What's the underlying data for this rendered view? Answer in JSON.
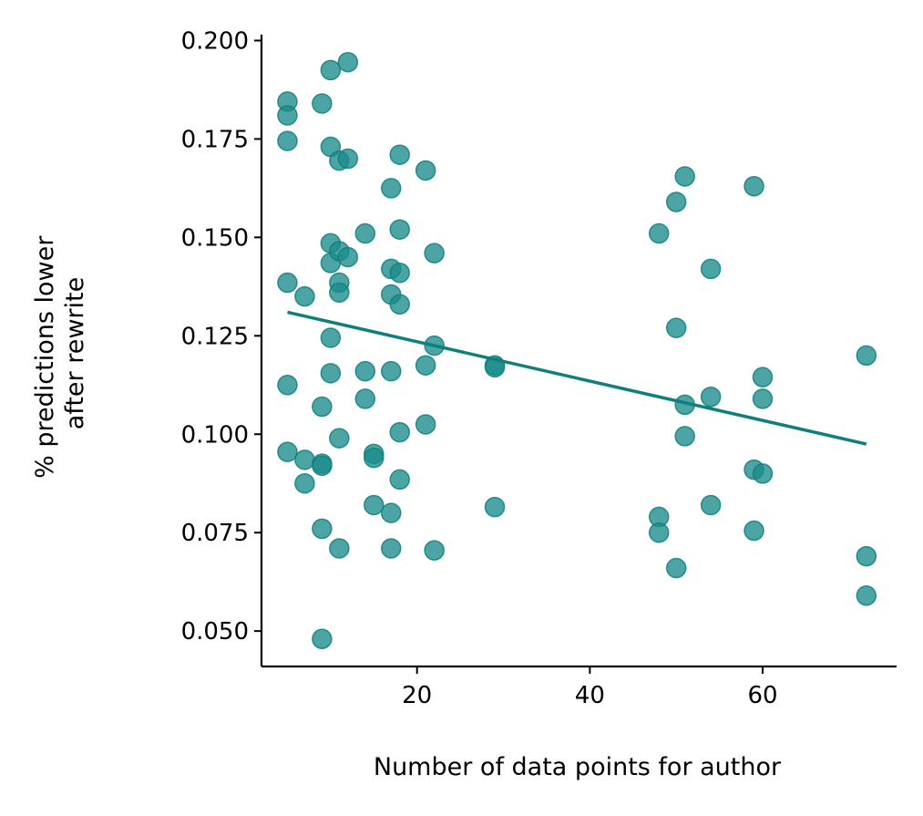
{
  "chart_data": {
    "type": "scatter",
    "title": "",
    "xlabel": "Number of data points for author",
    "ylabel_lines": [
      "% predictions lower",
      "after rewrite"
    ],
    "xlim": [
      2,
      75.5
    ],
    "ylim": [
      0.041,
      0.2015
    ],
    "x_ticks": [
      20,
      40,
      60
    ],
    "x_tick_labels": [
      "20",
      "40",
      "60"
    ],
    "y_ticks": [
      0.05,
      0.075,
      0.1,
      0.125,
      0.15,
      0.175,
      0.2
    ],
    "y_tick_labels": [
      "0.050",
      "0.075",
      "0.100",
      "0.125",
      "0.150",
      "0.175",
      "0.200"
    ],
    "grid": false,
    "colors": {
      "point": "#1a8c8a",
      "point_edge": "#0f7f7d",
      "trend": "#0f7f7d"
    },
    "points": [
      {
        "x": 5,
        "y": 0.1845
      },
      {
        "x": 5,
        "y": 0.181
      },
      {
        "x": 5,
        "y": 0.1745
      },
      {
        "x": 5,
        "y": 0.1385
      },
      {
        "x": 5,
        "y": 0.1125
      },
      {
        "x": 5,
        "y": 0.0955
      },
      {
        "x": 7,
        "y": 0.135
      },
      {
        "x": 7,
        "y": 0.0935
      },
      {
        "x": 7,
        "y": 0.0875
      },
      {
        "x": 9,
        "y": 0.184
      },
      {
        "x": 9,
        "y": 0.107
      },
      {
        "x": 9,
        "y": 0.0925
      },
      {
        "x": 9,
        "y": 0.092
      },
      {
        "x": 9,
        "y": 0.076
      },
      {
        "x": 9,
        "y": 0.048
      },
      {
        "x": 10,
        "y": 0.1925
      },
      {
        "x": 10,
        "y": 0.173
      },
      {
        "x": 10,
        "y": 0.1485
      },
      {
        "x": 10,
        "y": 0.1435
      },
      {
        "x": 10,
        "y": 0.1245
      },
      {
        "x": 10,
        "y": 0.1155
      },
      {
        "x": 11,
        "y": 0.1695
      },
      {
        "x": 11,
        "y": 0.1465
      },
      {
        "x": 11,
        "y": 0.1385
      },
      {
        "x": 11,
        "y": 0.136
      },
      {
        "x": 11,
        "y": 0.099
      },
      {
        "x": 11,
        "y": 0.071
      },
      {
        "x": 12,
        "y": 0.1945
      },
      {
        "x": 12,
        "y": 0.17
      },
      {
        "x": 12,
        "y": 0.145
      },
      {
        "x": 14,
        "y": 0.151
      },
      {
        "x": 14,
        "y": 0.116
      },
      {
        "x": 14,
        "y": 0.109
      },
      {
        "x": 15,
        "y": 0.095
      },
      {
        "x": 15,
        "y": 0.094
      },
      {
        "x": 15,
        "y": 0.082
      },
      {
        "x": 17,
        "y": 0.1625
      },
      {
        "x": 17,
        "y": 0.142
      },
      {
        "x": 17,
        "y": 0.1355
      },
      {
        "x": 17,
        "y": 0.116
      },
      {
        "x": 17,
        "y": 0.08
      },
      {
        "x": 17,
        "y": 0.071
      },
      {
        "x": 18,
        "y": 0.171
      },
      {
        "x": 18,
        "y": 0.152
      },
      {
        "x": 18,
        "y": 0.141
      },
      {
        "x": 18,
        "y": 0.133
      },
      {
        "x": 18,
        "y": 0.1005
      },
      {
        "x": 18,
        "y": 0.0885
      },
      {
        "x": 21,
        "y": 0.167
      },
      {
        "x": 21,
        "y": 0.1175
      },
      {
        "x": 21,
        "y": 0.1025
      },
      {
        "x": 22,
        "y": 0.146
      },
      {
        "x": 22,
        "y": 0.1225
      },
      {
        "x": 22,
        "y": 0.0705
      },
      {
        "x": 29,
        "y": 0.1175
      },
      {
        "x": 29,
        "y": 0.117
      },
      {
        "x": 29,
        "y": 0.0815
      },
      {
        "x": 48,
        "y": 0.151
      },
      {
        "x": 48,
        "y": 0.079
      },
      {
        "x": 48,
        "y": 0.075
      },
      {
        "x": 50,
        "y": 0.159
      },
      {
        "x": 50,
        "y": 0.127
      },
      {
        "x": 50,
        "y": 0.066
      },
      {
        "x": 51,
        "y": 0.1655
      },
      {
        "x": 51,
        "y": 0.1075
      },
      {
        "x": 51,
        "y": 0.0995
      },
      {
        "x": 54,
        "y": 0.142
      },
      {
        "x": 54,
        "y": 0.1095
      },
      {
        "x": 54,
        "y": 0.082
      },
      {
        "x": 59,
        "y": 0.163
      },
      {
        "x": 59,
        "y": 0.091
      },
      {
        "x": 59,
        "y": 0.0755
      },
      {
        "x": 60,
        "y": 0.1145
      },
      {
        "x": 60,
        "y": 0.109
      },
      {
        "x": 60,
        "y": 0.09
      },
      {
        "x": 72,
        "y": 0.12
      },
      {
        "x": 72,
        "y": 0.069
      },
      {
        "x": 72,
        "y": 0.059
      }
    ],
    "trend_line": {
      "x": [
        5,
        72
      ],
      "y": [
        0.131,
        0.0975
      ]
    }
  }
}
